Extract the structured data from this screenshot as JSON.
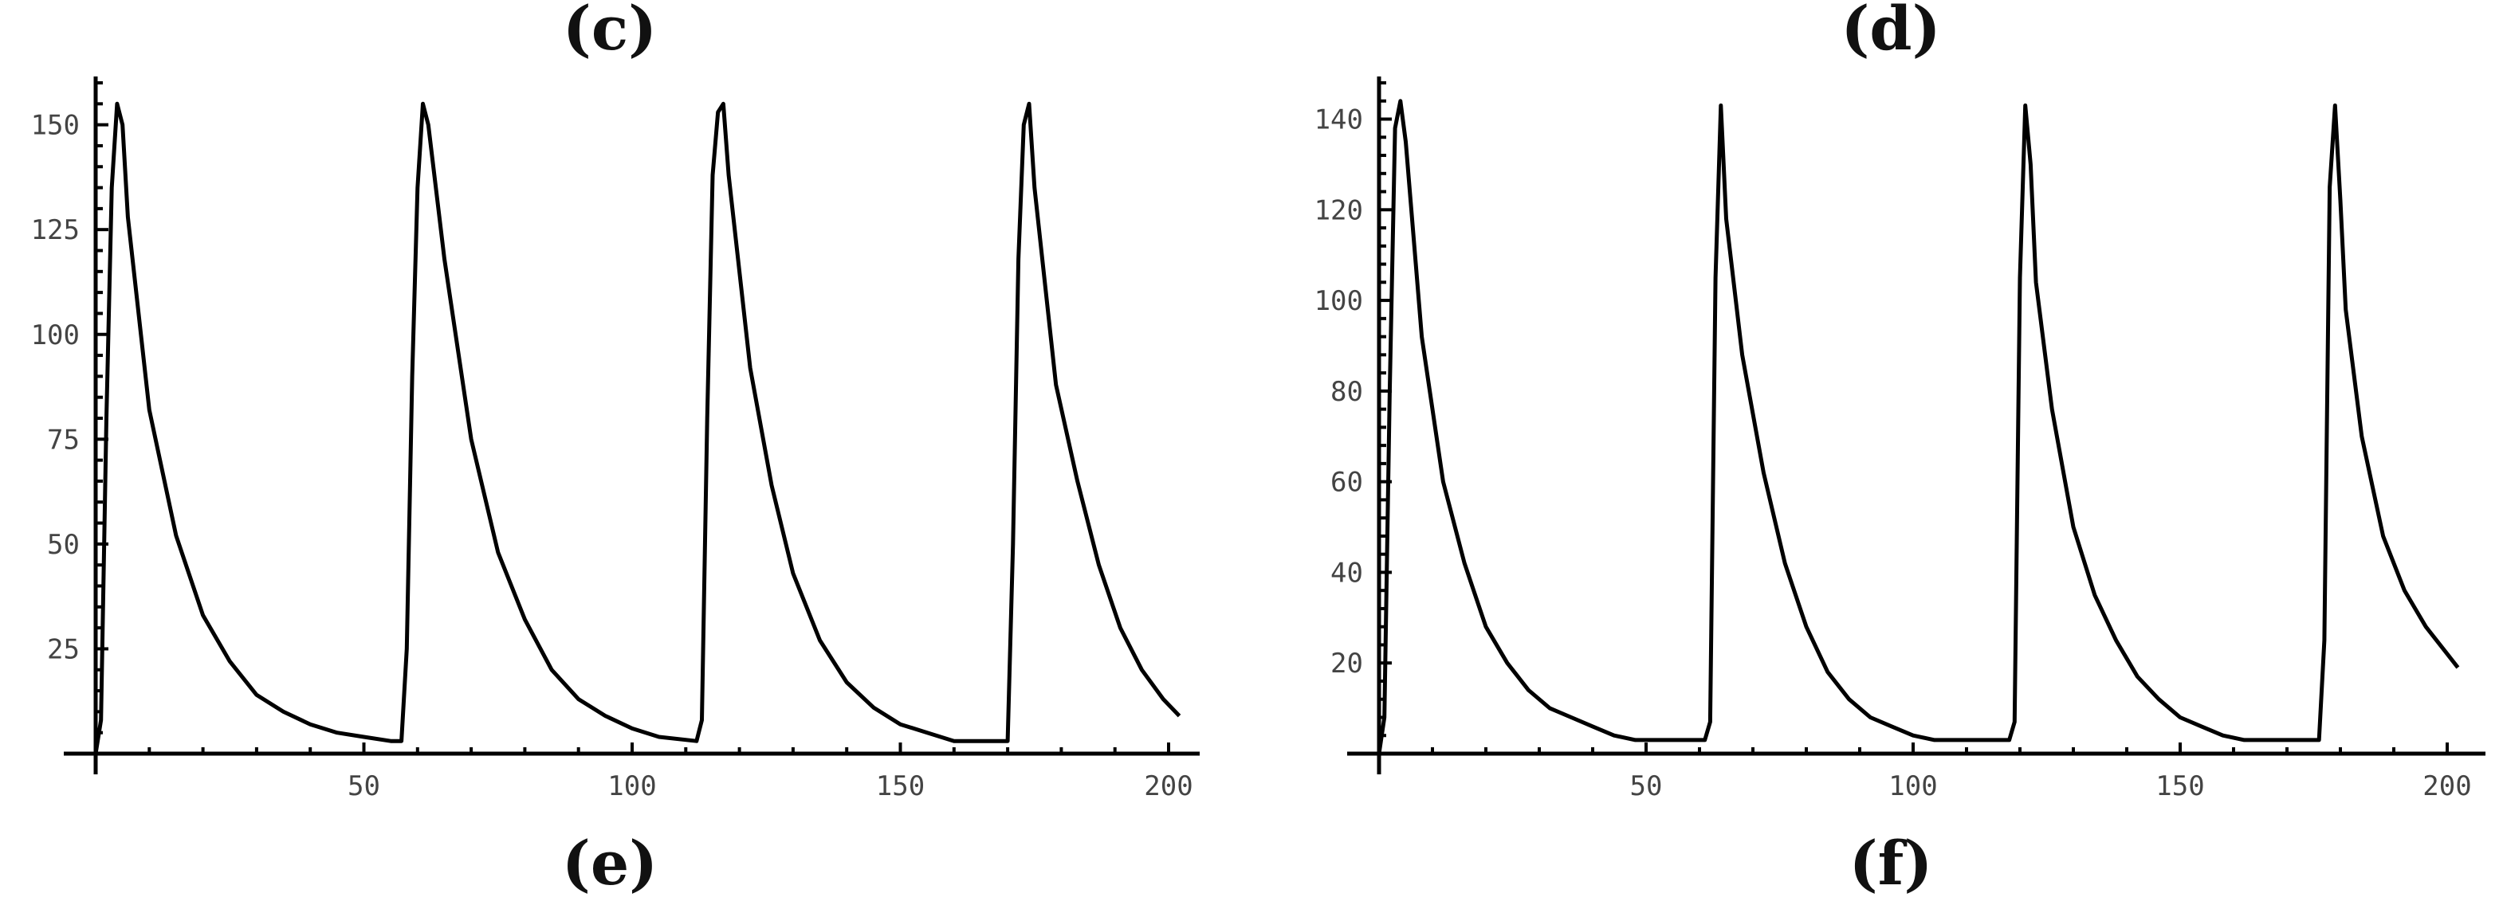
{
  "panel_labels": {
    "top_left": "(c)",
    "top_right": "(d)",
    "bottom_left": "(e)",
    "bottom_right": "(f)"
  },
  "chart_data": [
    {
      "type": "line",
      "title": "",
      "xlabel": "",
      "ylabel": "",
      "xlim": [
        0,
        205
      ],
      "ylim": [
        0,
        160
      ],
      "xticks": [
        50,
        100,
        150,
        200
      ],
      "yticks": [
        25,
        50,
        75,
        100,
        125,
        150
      ],
      "grid": false,
      "series": [
        {
          "x": [
            0,
            1,
            2,
            3,
            4,
            5,
            6,
            10,
            15,
            20,
            25,
            30,
            35,
            40,
            45,
            50,
            55,
            57,
            58,
            59,
            60,
            61,
            62,
            65,
            70,
            75,
            80,
            85,
            90,
            95,
            100,
            105,
            112,
            113,
            114,
            115,
            116,
            117,
            118,
            122,
            126,
            130,
            135,
            140,
            145,
            150,
            155,
            160,
            165,
            170,
            171,
            172,
            173,
            174,
            175,
            179,
            183,
            187,
            191,
            195,
            199,
            202
          ],
          "y": [
            0,
            8,
            80,
            135,
            155,
            150,
            128,
            82,
            52,
            33,
            22,
            14,
            10,
            7,
            5,
            4,
            3,
            3,
            25,
            90,
            135,
            155,
            150,
            118,
            75,
            48,
            32,
            20,
            13,
            9,
            6,
            4,
            3,
            8,
            80,
            138,
            153,
            155,
            138,
            92,
            64,
            43,
            27,
            17,
            11,
            7,
            5,
            3,
            3,
            3,
            50,
            118,
            150,
            155,
            135,
            88,
            65,
            45,
            30,
            20,
            13,
            9
          ]
        }
      ]
    },
    {
      "type": "line",
      "title": "",
      "xlabel": "",
      "ylabel": "",
      "xlim": [
        0,
        205
      ],
      "ylim": [
        0,
        148
      ],
      "xticks": [
        50,
        100,
        150,
        200
      ],
      "yticks": [
        20,
        40,
        60,
        80,
        100,
        120,
        140
      ],
      "grid": false,
      "series": [
        {
          "x": [
            0,
            1,
            2,
            3,
            4,
            5,
            8,
            12,
            16,
            20,
            24,
            28,
            32,
            36,
            40,
            44,
            48,
            52,
            56,
            61,
            62,
            63,
            64,
            65,
            68,
            72,
            76,
            80,
            84,
            88,
            92,
            96,
            100,
            104,
            108,
            112,
            118,
            119,
            120,
            121,
            122,
            123,
            126,
            130,
            134,
            138,
            142,
            146,
            150,
            154,
            158,
            162,
            166,
            170,
            176,
            177,
            178,
            179,
            180,
            181,
            184,
            188,
            192,
            196,
            200,
            202
          ],
          "y": [
            0,
            8,
            80,
            138,
            144,
            135,
            92,
            60,
            42,
            28,
            20,
            14,
            10,
            8,
            6,
            4,
            3,
            3,
            3,
            3,
            7,
            105,
            143,
            118,
            88,
            62,
            42,
            28,
            18,
            12,
            8,
            6,
            4,
            3,
            3,
            3,
            3,
            7,
            105,
            143,
            130,
            104,
            76,
            50,
            35,
            25,
            17,
            12,
            8,
            6,
            4,
            3,
            3,
            3,
            3,
            25,
            125,
            143,
            122,
            98,
            70,
            48,
            36,
            28,
            22,
            19
          ]
        }
      ]
    }
  ]
}
